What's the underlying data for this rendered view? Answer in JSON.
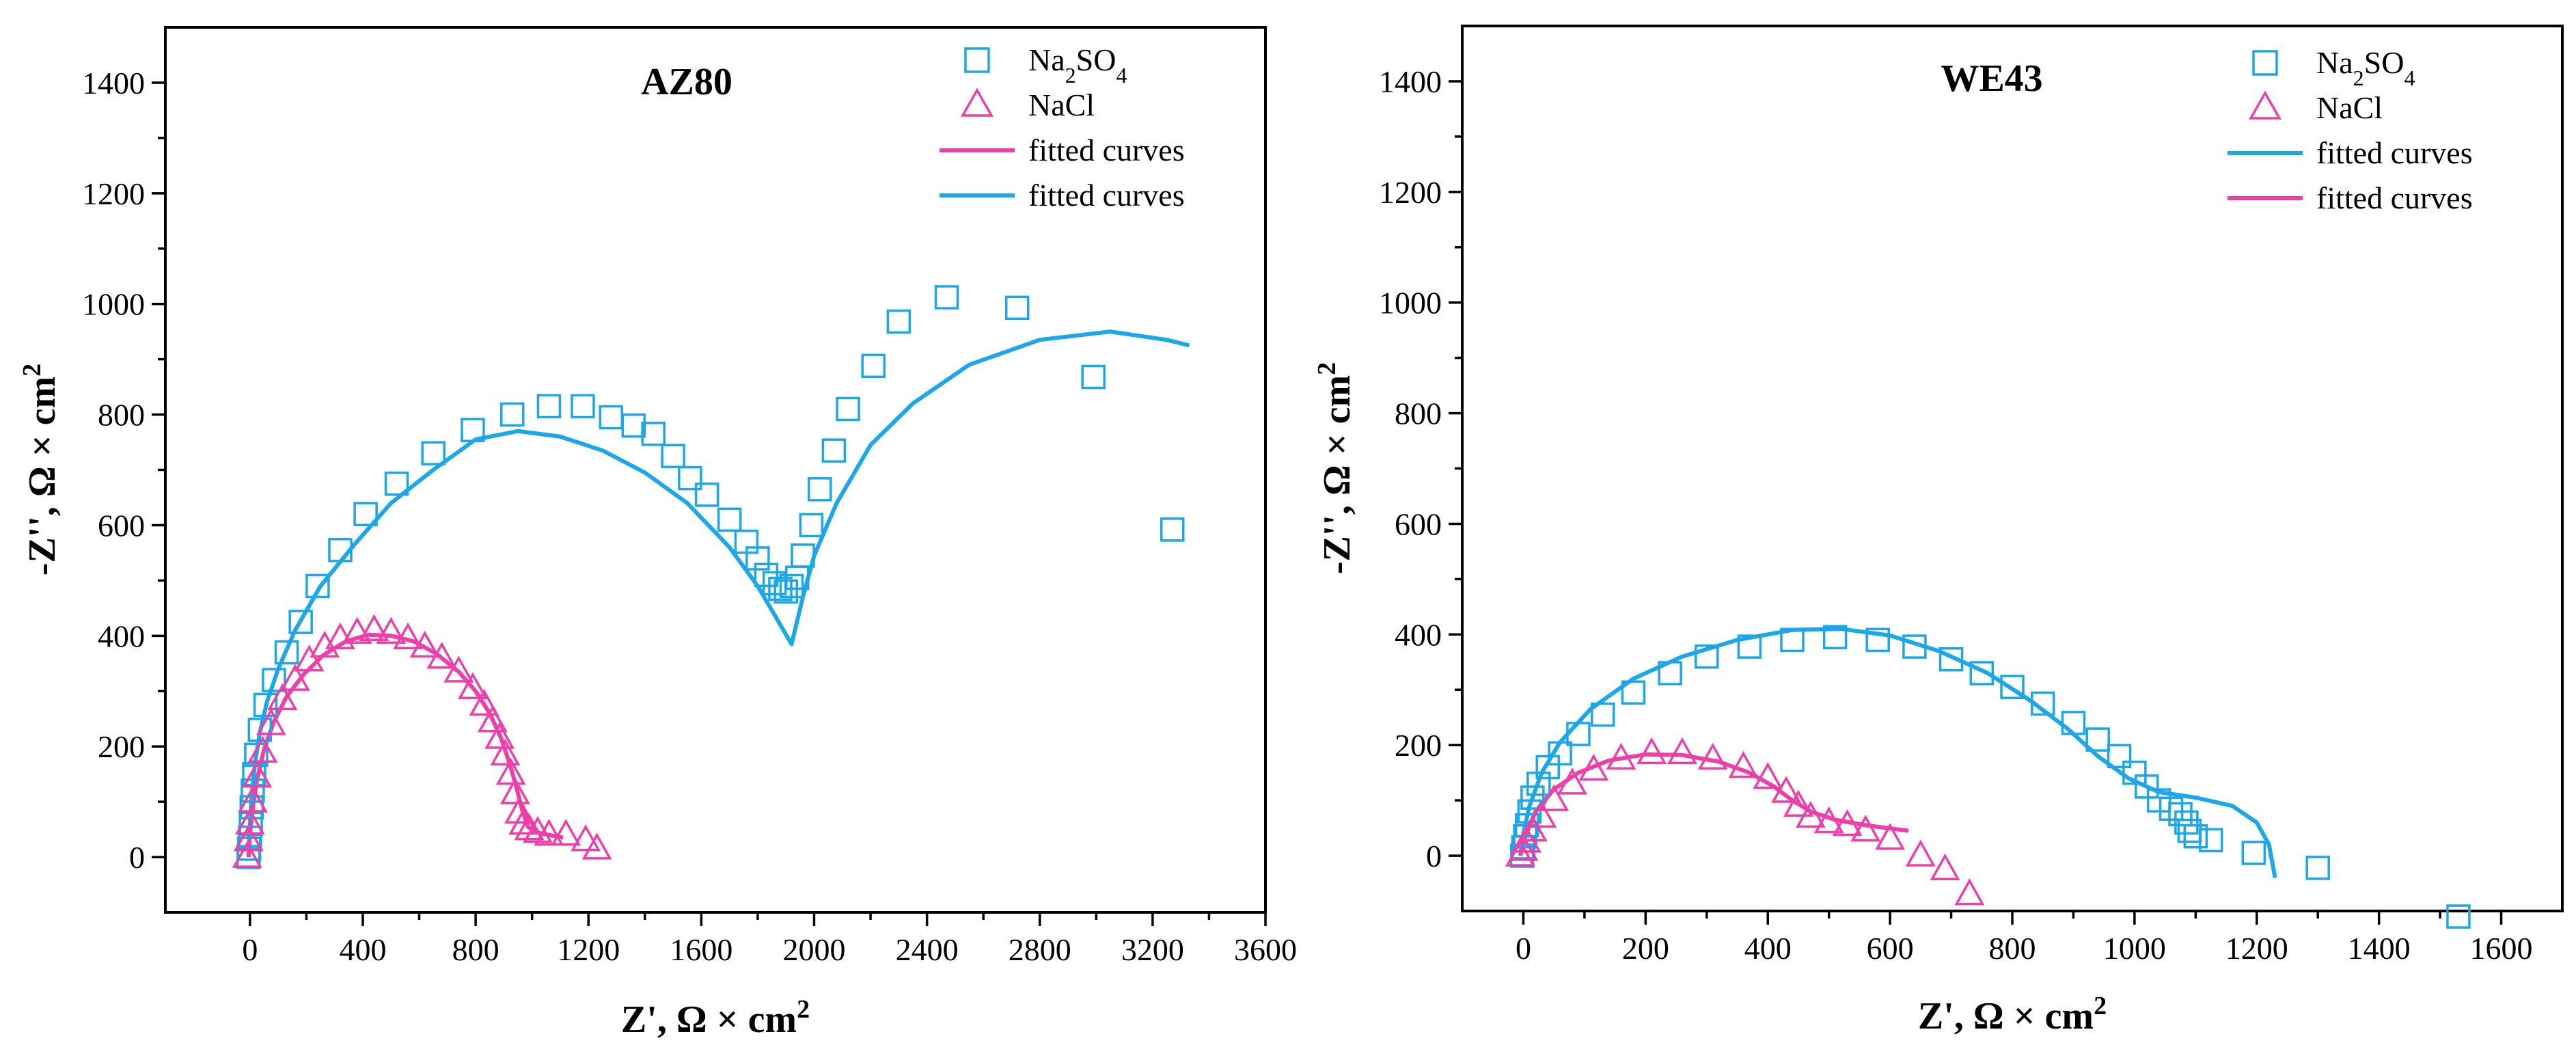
{
  "chart_data": [
    {
      "type": "scatter",
      "title": "AZ80",
      "xlabel": "Z', Ω × cm",
      "xlabel_sup": "2",
      "ylabel": "-Z'', Ω × cm",
      "ylabel_sup": "2",
      "xlim": [
        -300,
        3600
      ],
      "ylim": [
        -100,
        1500
      ],
      "xticks": [
        0,
        400,
        800,
        1200,
        1600,
        2000,
        2400,
        2800,
        3200,
        3600
      ],
      "yticks": [
        0,
        200,
        400,
        600,
        800,
        1000,
        1200,
        1400
      ],
      "legend": [
        {
          "label": "Na",
          "sub1": "2",
          "mid": "SO",
          "sub2": "4",
          "marker": "square",
          "color": "#1BA7E8"
        },
        {
          "label": "NaCl",
          "marker": "triangle",
          "color": "#EE3FA8"
        },
        {
          "label": "fitted curves",
          "marker": "line",
          "color": "#EE3FA8"
        },
        {
          "label": "fitted curves",
          "marker": "line",
          "color": "#1BA7E8"
        }
      ],
      "series": [
        {
          "name": "Na2SO4",
          "kind": "square",
          "color": "#1BA7E8",
          "points": [
            [
              -5,
              0
            ],
            [
              -3,
              15
            ],
            [
              0,
              35
            ],
            [
              3,
              60
            ],
            [
              6,
              90
            ],
            [
              10,
              120
            ],
            [
              15,
              150
            ],
            [
              22,
              185
            ],
            [
              35,
              230
            ],
            [
              55,
              275
            ],
            [
              85,
              320
            ],
            [
              130,
              370
            ],
            [
              180,
              425
            ],
            [
              240,
              490
            ],
            [
              320,
              555
            ],
            [
              410,
              620
            ],
            [
              520,
              675
            ],
            [
              650,
              730
            ],
            [
              790,
              772
            ],
            [
              930,
              800
            ],
            [
              1060,
              815
            ],
            [
              1180,
              815
            ],
            [
              1280,
              795
            ],
            [
              1360,
              780
            ],
            [
              1430,
              765
            ],
            [
              1500,
              725
            ],
            [
              1560,
              685
            ],
            [
              1620,
              655
            ],
            [
              1700,
              610
            ],
            [
              1760,
              570
            ],
            [
              1800,
              540
            ],
            [
              1830,
              510
            ],
            [
              1860,
              495
            ],
            [
              1880,
              485
            ],
            [
              1900,
              480
            ],
            [
              1920,
              490
            ],
            [
              1940,
              505
            ],
            [
              1960,
              545
            ],
            [
              1990,
              600
            ],
            [
              2020,
              665
            ],
            [
              2070,
              735
            ],
            [
              2120,
              810
            ],
            [
              2210,
              888
            ],
            [
              2300,
              968
            ],
            [
              2470,
              1012
            ],
            [
              2720,
              993
            ],
            [
              2990,
              868
            ],
            [
              3270,
              592
            ]
          ]
        },
        {
          "name": "NaCl",
          "kind": "triangle",
          "color": "#EE3FA8",
          "points": [
            [
              -10,
              0
            ],
            [
              -5,
              30
            ],
            [
              0,
              60
            ],
            [
              10,
              100
            ],
            [
              25,
              145
            ],
            [
              45,
              190
            ],
            [
              75,
              240
            ],
            [
              115,
              285
            ],
            [
              160,
              320
            ],
            [
              210,
              355
            ],
            [
              265,
              380
            ],
            [
              320,
              395
            ],
            [
              380,
              405
            ],
            [
              440,
              410
            ],
            [
              500,
              405
            ],
            [
              560,
              395
            ],
            [
              620,
              380
            ],
            [
              680,
              360
            ],
            [
              740,
              335
            ],
            [
              790,
              305
            ],
            [
              830,
              275
            ],
            [
              860,
              245
            ],
            [
              885,
              215
            ],
            [
              905,
              185
            ],
            [
              925,
              150
            ],
            [
              940,
              115
            ],
            [
              955,
              80
            ],
            [
              970,
              60
            ],
            [
              990,
              50
            ],
            [
              1020,
              45
            ],
            [
              1060,
              40
            ],
            [
              1120,
              40
            ],
            [
              1190,
              30
            ],
            [
              1230,
              15
            ]
          ]
        }
      ],
      "curves": [
        {
          "name": "fitted curves",
          "color": "#1BA7E8",
          "points": [
            [
              -5,
              0
            ],
            [
              -2,
              40
            ],
            [
              2,
              80
            ],
            [
              8,
              120
            ],
            [
              18,
              170
            ],
            [
              35,
              225
            ],
            [
              60,
              280
            ],
            [
              100,
              340
            ],
            [
              160,
              410
            ],
            [
              250,
              490
            ],
            [
              370,
              565
            ],
            [
              500,
              640
            ],
            [
              650,
              700
            ],
            [
              800,
              755
            ],
            [
              950,
              770
            ],
            [
              1100,
              760
            ],
            [
              1250,
              735
            ],
            [
              1400,
              695
            ],
            [
              1550,
              640
            ],
            [
              1700,
              560
            ],
            [
              1800,
              490
            ],
            [
              1880,
              420
            ],
            [
              1920,
              385
            ],
            [
              1960,
              470
            ],
            [
              2000,
              545
            ],
            [
              2080,
              640
            ],
            [
              2200,
              745
            ],
            [
              2350,
              820
            ],
            [
              2550,
              890
            ],
            [
              2800,
              935
            ],
            [
              3050,
              950
            ],
            [
              3250,
              935
            ],
            [
              3330,
              925
            ]
          ]
        },
        {
          "name": "fitted curves",
          "color": "#EE3FA8",
          "points": [
            [
              -5,
              0
            ],
            [
              0,
              40
            ],
            [
              10,
              90
            ],
            [
              25,
              140
            ],
            [
              50,
              195
            ],
            [
              85,
              245
            ],
            [
              130,
              290
            ],
            [
              190,
              330
            ],
            [
              260,
              365
            ],
            [
              340,
              390
            ],
            [
              420,
              402
            ],
            [
              500,
              400
            ],
            [
              580,
              390
            ],
            [
              660,
              368
            ],
            [
              740,
              335
            ],
            [
              800,
              300
            ],
            [
              850,
              260
            ],
            [
              890,
              215
            ],
            [
              920,
              170
            ],
            [
              945,
              125
            ],
            [
              965,
              85
            ],
            [
              985,
              55
            ],
            [
              1010,
              45
            ],
            [
              1060,
              40
            ],
            [
              1110,
              35
            ]
          ]
        }
      ]
    },
    {
      "type": "scatter",
      "title": "WE43",
      "xlabel": "Z', Ω × cm",
      "xlabel_sup": "2",
      "ylabel": "-Z'', Ω × cm",
      "ylabel_sup": "2",
      "xlim": [
        -100,
        1700
      ],
      "ylim": [
        -100,
        1500
      ],
      "xticks": [
        0,
        200,
        400,
        600,
        800,
        1000,
        1200,
        1400,
        1600
      ],
      "yticks": [
        0,
        200,
        400,
        600,
        800,
        1000,
        1200,
        1400
      ],
      "legend": [
        {
          "label": "Na",
          "sub1": "2",
          "mid": "SO",
          "sub2": "4",
          "marker": "square",
          "color": "#1BA7E8"
        },
        {
          "label": "NaCl",
          "marker": "triangle",
          "color": "#EE3FA8"
        },
        {
          "label": "fitted curves",
          "marker": "line",
          "color": "#1BA7E8"
        },
        {
          "label": "fitted curves",
          "marker": "line",
          "color": "#EE3FA8"
        }
      ],
      "series": [
        {
          "name": "Na2SO4",
          "kind": "square",
          "color": "#1BA7E8",
          "points": [
            [
              -2,
              0
            ],
            [
              0,
              15
            ],
            [
              3,
              35
            ],
            [
              6,
              55
            ],
            [
              10,
              80
            ],
            [
              15,
              105
            ],
            [
              25,
              130
            ],
            [
              40,
              160
            ],
            [
              60,
              185
            ],
            [
              90,
              220
            ],
            [
              130,
              255
            ],
            [
              180,
              295
            ],
            [
              240,
              330
            ],
            [
              300,
              360
            ],
            [
              370,
              378
            ],
            [
              440,
              390
            ],
            [
              510,
              395
            ],
            [
              580,
              390
            ],
            [
              640,
              378
            ],
            [
              700,
              355
            ],
            [
              750,
              330
            ],
            [
              800,
              305
            ],
            [
              850,
              275
            ],
            [
              900,
              240
            ],
            [
              940,
              210
            ],
            [
              975,
              180
            ],
            [
              1000,
              150
            ],
            [
              1020,
              125
            ],
            [
              1040,
              100
            ],
            [
              1060,
              85
            ],
            [
              1075,
              75
            ],
            [
              1085,
              60
            ],
            [
              1090,
              45
            ],
            [
              1100,
              35
            ],
            [
              1125,
              28
            ],
            [
              1195,
              5
            ],
            [
              1300,
              -22
            ],
            [
              1530,
              -110
            ]
          ]
        },
        {
          "name": "NaCl",
          "kind": "triangle",
          "color": "#EE3FA8",
          "points": [
            [
              -5,
              0
            ],
            [
              0,
              10
            ],
            [
              5,
              25
            ],
            [
              15,
              45
            ],
            [
              30,
              70
            ],
            [
              50,
              100
            ],
            [
              80,
              130
            ],
            [
              115,
              155
            ],
            [
              160,
              175
            ],
            [
              210,
              185
            ],
            [
              260,
              185
            ],
            [
              310,
              175
            ],
            [
              360,
              160
            ],
            [
              400,
              140
            ],
            [
              430,
              115
            ],
            [
              450,
              90
            ],
            [
              470,
              70
            ],
            [
              500,
              60
            ],
            [
              530,
              55
            ],
            [
              560,
              45
            ],
            [
              600,
              30
            ],
            [
              650,
              0
            ],
            [
              690,
              -25
            ],
            [
              730,
              -70
            ]
          ]
        }
      ],
      "curves": [
        {
          "name": "fitted curves",
          "color": "#1BA7E8",
          "points": [
            [
              -5,
              0
            ],
            [
              0,
              40
            ],
            [
              10,
              90
            ],
            [
              30,
              150
            ],
            [
              60,
              205
            ],
            [
              110,
              265
            ],
            [
              180,
              320
            ],
            [
              260,
              360
            ],
            [
              350,
              390
            ],
            [
              440,
              408
            ],
            [
              520,
              410
            ],
            [
              600,
              398
            ],
            [
              680,
              370
            ],
            [
              760,
              330
            ],
            [
              830,
              280
            ],
            [
              890,
              230
            ],
            [
              940,
              180
            ],
            [
              990,
              140
            ],
            [
              1040,
              115
            ],
            [
              1100,
              105
            ],
            [
              1160,
              90
            ],
            [
              1200,
              60
            ],
            [
              1220,
              20
            ],
            [
              1230,
              -40
            ]
          ]
        },
        {
          "name": "fitted curves",
          "color": "#EE3FA8",
          "points": [
            [
              -5,
              0
            ],
            [
              5,
              40
            ],
            [
              20,
              80
            ],
            [
              50,
              120
            ],
            [
              90,
              150
            ],
            [
              140,
              172
            ],
            [
              200,
              183
            ],
            [
              260,
              182
            ],
            [
              320,
              170
            ],
            [
              370,
              150
            ],
            [
              410,
              125
            ],
            [
              440,
              100
            ],
            [
              470,
              80
            ],
            [
              510,
              65
            ],
            [
              560,
              55
            ],
            [
              630,
              45
            ]
          ]
        }
      ]
    }
  ]
}
